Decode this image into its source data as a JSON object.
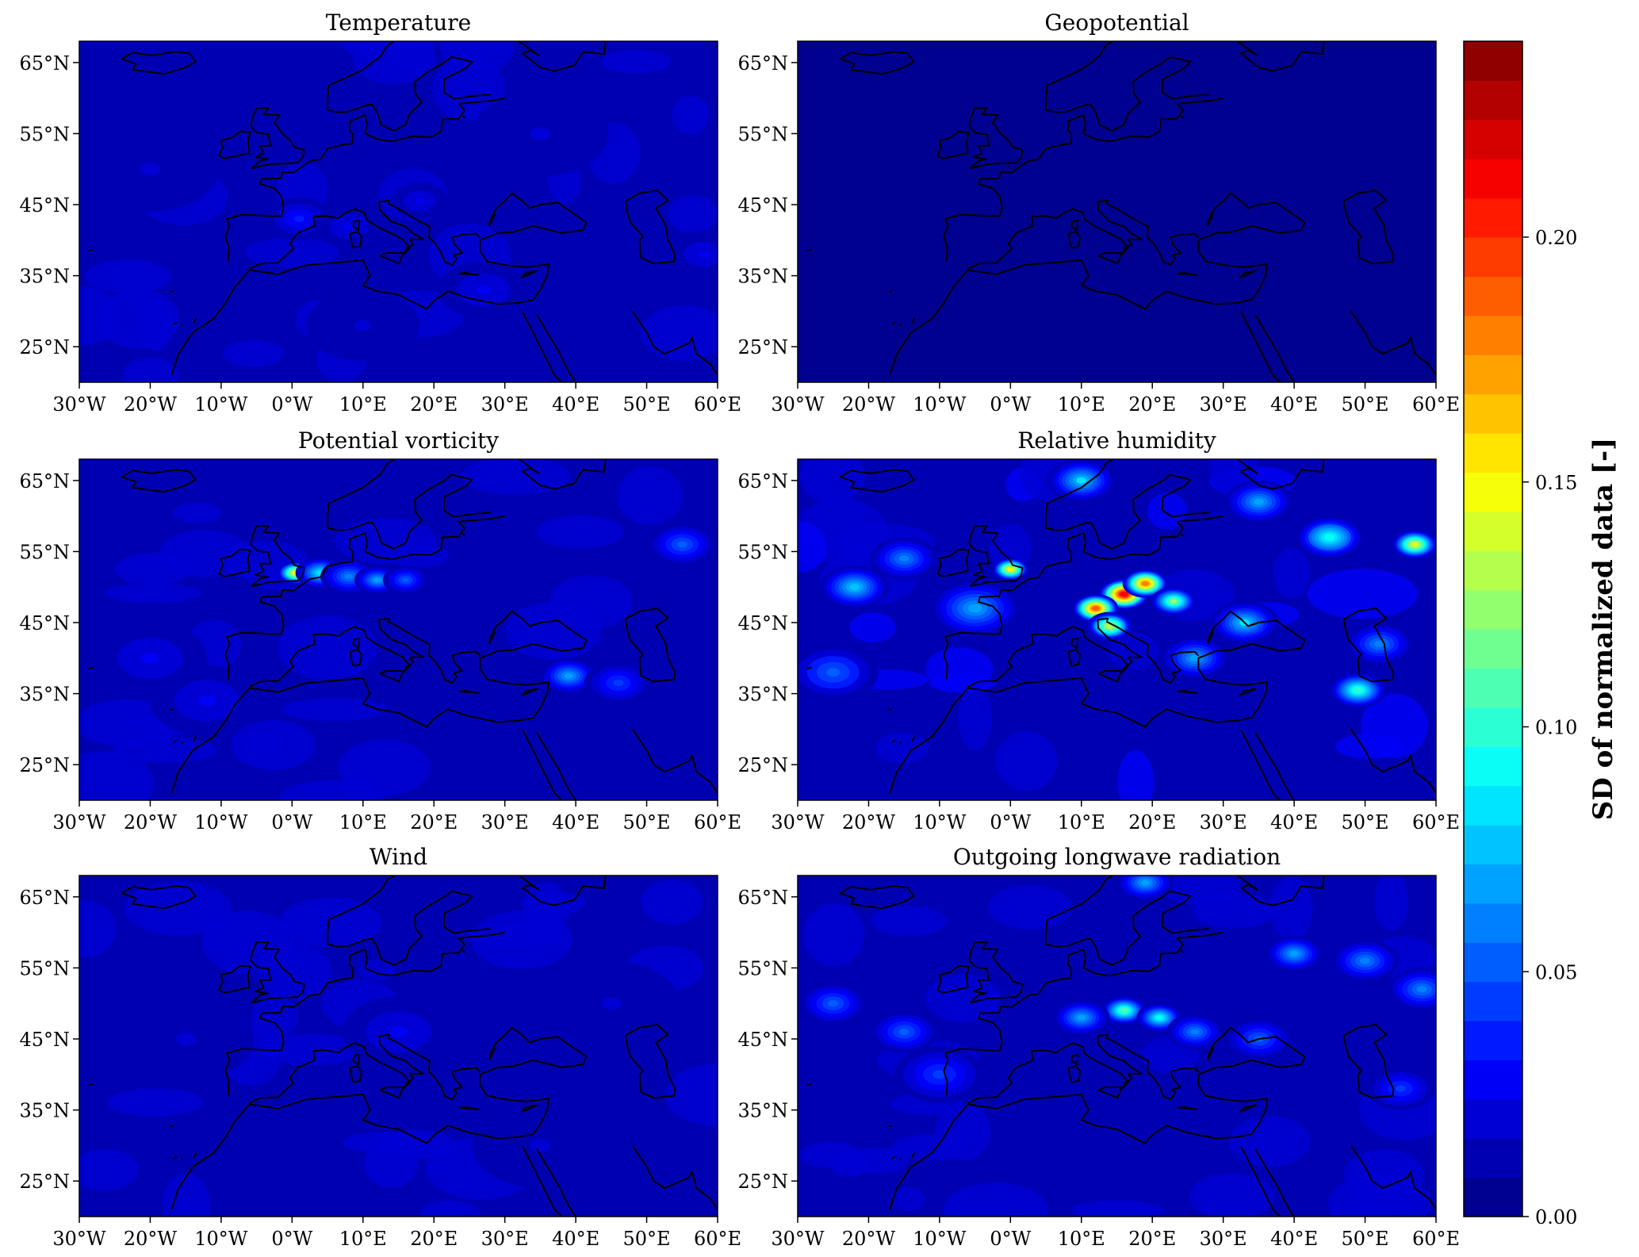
{
  "chart_data": {
    "type": "heatmap",
    "description_units": "filled-contour maps of SD of normalized data over Europe",
    "lon_range": [
      -30,
      60
    ],
    "lat_range": [
      20,
      68
    ],
    "x_ticks": [
      "30°W",
      "20°W",
      "10°W",
      "0°W",
      "10°E",
      "20°E",
      "30°E",
      "40°E",
      "50°E",
      "60°E"
    ],
    "x_tick_values": [
      -30,
      -20,
      -10,
      0,
      10,
      20,
      30,
      40,
      50,
      60
    ],
    "y_ticks": [
      "65°N",
      "55°N",
      "45°N",
      "35°N",
      "25°N"
    ],
    "y_tick_values": [
      65,
      55,
      45,
      35,
      25
    ],
    "panels": [
      {
        "title": "Temperature",
        "background": 0.012,
        "hotspots": [
          {
            "lon": 1,
            "lat": 43,
            "v": 0.035,
            "r": 3
          },
          {
            "lon": 8,
            "lat": 42,
            "v": 0.028,
            "r": 3
          },
          {
            "lon": 18,
            "lat": 45.5,
            "v": 0.03,
            "r": 2.5
          },
          {
            "lon": 27,
            "lat": 33,
            "v": 0.025,
            "r": 4
          },
          {
            "lon": 58,
            "lat": 38,
            "v": 0.03,
            "r": 3
          },
          {
            "lon": -20,
            "lat": 50,
            "v": 0.022,
            "r": 6
          },
          {
            "lon": 35,
            "lat": 55,
            "v": 0.02,
            "r": 6
          },
          {
            "lon": 10,
            "lat": 28,
            "v": 0.02,
            "r": 5
          }
        ]
      },
      {
        "title": "Geopotential",
        "background": 0.004,
        "hotspots": []
      },
      {
        "title": "Potential vorticity",
        "background": 0.012,
        "hotspots": [
          {
            "lon": 0.5,
            "lat": 52,
            "v": 0.15,
            "r": 1.6
          },
          {
            "lon": 4,
            "lat": 52,
            "v": 0.085,
            "r": 2.2
          },
          {
            "lon": 8,
            "lat": 51.5,
            "v": 0.06,
            "r": 2.5
          },
          {
            "lon": 12,
            "lat": 51,
            "v": 0.07,
            "r": 2
          },
          {
            "lon": 16,
            "lat": 51,
            "v": 0.05,
            "r": 2
          },
          {
            "lon": 39,
            "lat": 37.5,
            "v": 0.065,
            "r": 2.5
          },
          {
            "lon": 46,
            "lat": 36.5,
            "v": 0.04,
            "r": 3
          },
          {
            "lon": 55,
            "lat": 56,
            "v": 0.05,
            "r": 3
          },
          {
            "lon": -12,
            "lat": 34,
            "v": 0.03,
            "r": 5
          },
          {
            "lon": -20,
            "lat": 40,
            "v": 0.025,
            "r": 5
          }
        ]
      },
      {
        "title": "Relative humidity",
        "background": 0.015,
        "hotspots": [
          {
            "lon": 16,
            "lat": 49,
            "v": 0.21,
            "r": 2.2
          },
          {
            "lon": 12,
            "lat": 47,
            "v": 0.19,
            "r": 2
          },
          {
            "lon": 19,
            "lat": 50.5,
            "v": 0.18,
            "r": 2
          },
          {
            "lon": 14,
            "lat": 44.5,
            "v": 0.13,
            "r": 2
          },
          {
            "lon": 23,
            "lat": 48,
            "v": 0.12,
            "r": 2
          },
          {
            "lon": 0,
            "lat": 52.5,
            "v": 0.15,
            "r": 1.6
          },
          {
            "lon": 57,
            "lat": 56,
            "v": 0.14,
            "r": 2
          },
          {
            "lon": 49,
            "lat": 35.5,
            "v": 0.1,
            "r": 2.5
          },
          {
            "lon": 45,
            "lat": 57,
            "v": 0.09,
            "r": 3
          },
          {
            "lon": 33,
            "lat": 45,
            "v": 0.08,
            "r": 3
          },
          {
            "lon": -5,
            "lat": 47,
            "v": 0.07,
            "r": 4
          },
          {
            "lon": -22,
            "lat": 50,
            "v": 0.075,
            "r": 3
          },
          {
            "lon": -15,
            "lat": 54,
            "v": 0.06,
            "r": 3
          },
          {
            "lon": 10,
            "lat": 65,
            "v": 0.08,
            "r": 3
          },
          {
            "lon": 35,
            "lat": 62,
            "v": 0.07,
            "r": 3
          },
          {
            "lon": 26,
            "lat": 40,
            "v": 0.07,
            "r": 3
          },
          {
            "lon": -25,
            "lat": 38,
            "v": 0.05,
            "r": 4
          },
          {
            "lon": 52,
            "lat": 42,
            "v": 0.06,
            "r": 3
          }
        ]
      },
      {
        "title": "Wind",
        "background": 0.012,
        "hotspots": [
          {
            "lon": 15,
            "lat": 46,
            "v": 0.025,
            "r": 5
          },
          {
            "lon": -15,
            "lat": 45,
            "v": 0.022,
            "r": 6
          },
          {
            "lon": 35,
            "lat": 30,
            "v": 0.02,
            "r": 6
          },
          {
            "lon": 45,
            "lat": 50,
            "v": 0.02,
            "r": 6
          }
        ]
      },
      {
        "title": "Outgoing longwave radiation",
        "background": 0.012,
        "hotspots": [
          {
            "lon": 16,
            "lat": 49,
            "v": 0.11,
            "r": 2
          },
          {
            "lon": 21,
            "lat": 48,
            "v": 0.09,
            "r": 2
          },
          {
            "lon": 10,
            "lat": 48,
            "v": 0.07,
            "r": 2.5
          },
          {
            "lon": 26,
            "lat": 46,
            "v": 0.06,
            "r": 2.5
          },
          {
            "lon": 19,
            "lat": 67,
            "v": 0.07,
            "r": 2.5
          },
          {
            "lon": 40,
            "lat": 57,
            "v": 0.065,
            "r": 2.5
          },
          {
            "lon": 50,
            "lat": 56,
            "v": 0.06,
            "r": 3
          },
          {
            "lon": 58,
            "lat": 52,
            "v": 0.06,
            "r": 3
          },
          {
            "lon": -25,
            "lat": 50,
            "v": 0.05,
            "r": 3
          },
          {
            "lon": -15,
            "lat": 46,
            "v": 0.05,
            "r": 3
          },
          {
            "lon": 35,
            "lat": 45,
            "v": 0.05,
            "r": 3
          },
          {
            "lon": 55,
            "lat": 38,
            "v": 0.045,
            "r": 3
          },
          {
            "lon": -10,
            "lat": 40,
            "v": 0.04,
            "r": 4
          }
        ]
      }
    ],
    "colorbar": {
      "label": "SD of normalized data  [-]",
      "min": 0.0,
      "max": 0.24,
      "levels": 30,
      "colormap": "jet",
      "ticks": [
        {
          "value": 0.0,
          "label": "0.00"
        },
        {
          "value": 0.05,
          "label": "0.05"
        },
        {
          "value": 0.1,
          "label": "0.10"
        },
        {
          "value": 0.15,
          "label": "0.15"
        },
        {
          "value": 0.2,
          "label": "0.20"
        }
      ]
    },
    "coastline_color": "#000000"
  }
}
